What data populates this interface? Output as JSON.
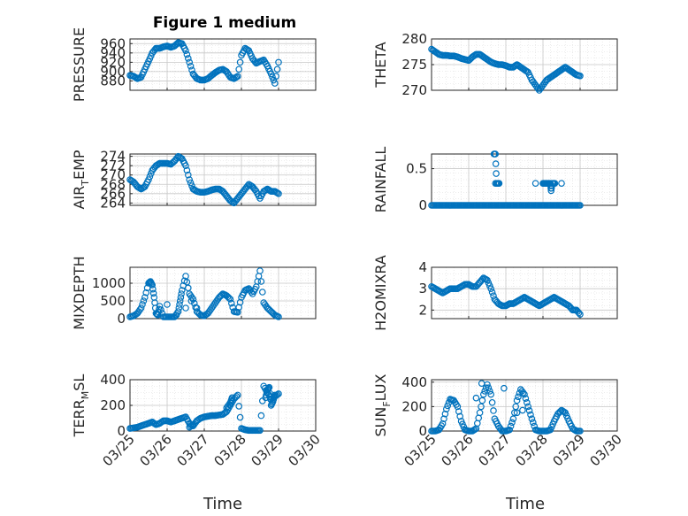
{
  "figure": {
    "title": "Figure 1 medium",
    "xlabel": "Time"
  },
  "style": {
    "marker_color": "#0072bd",
    "axis_color": "#262626",
    "grid_color": "#c8c8c8"
  },
  "chart_data": [
    {
      "type": "scatter",
      "ylabel": "PRESSURE",
      "ylim": [
        860,
        970
      ],
      "yticks": [
        880,
        900,
        920,
        940,
        960
      ],
      "xlim": [
        0,
        5
      ],
      "grid": true,
      "x": [
        0,
        0.1,
        0.2,
        0.3,
        0.4,
        0.5,
        0.6,
        0.7,
        0.8,
        0.9,
        1.0,
        1.1,
        1.2,
        1.3,
        1.4,
        1.5,
        1.6,
        1.7,
        1.8,
        1.9,
        2.0,
        2.1,
        2.2,
        2.3,
        2.4,
        2.5,
        2.6,
        2.7,
        2.8,
        2.9,
        3.0,
        3.1,
        3.2,
        3.3,
        3.4,
        3.5,
        3.6,
        3.7,
        3.8,
        3.9,
        4.0
      ],
      "y": [
        892,
        890,
        885,
        888,
        905,
        922,
        940,
        950,
        950,
        953,
        955,
        952,
        955,
        962,
        960,
        945,
        920,
        895,
        885,
        882,
        882,
        885,
        892,
        898,
        903,
        905,
        900,
        888,
        885,
        890,
        935,
        950,
        945,
        928,
        918,
        922,
        925,
        912,
        895,
        875,
        920
      ]
    },
    {
      "type": "scatter",
      "ylabel": "THETA",
      "ylim": [
        270,
        280
      ],
      "yticks": [
        270,
        275,
        280
      ],
      "xlim": [
        0,
        5
      ],
      "grid": true,
      "x": [
        0,
        0.1,
        0.2,
        0.3,
        0.4,
        0.5,
        0.6,
        0.7,
        0.8,
        0.9,
        1.0,
        1.1,
        1.2,
        1.3,
        1.4,
        1.5,
        1.6,
        1.7,
        1.8,
        1.9,
        2.0,
        2.1,
        2.2,
        2.3,
        2.4,
        2.5,
        2.6,
        2.7,
        2.8,
        2.9,
        3.0,
        3.1,
        3.2,
        3.3,
        3.4,
        3.5,
        3.6,
        3.7,
        3.8,
        3.9,
        4.0
      ],
      "y": [
        278,
        277.5,
        277,
        276.8,
        276.8,
        276.7,
        276.7,
        276.5,
        276.2,
        276,
        275.8,
        276.5,
        277,
        277,
        276.5,
        276,
        275.5,
        275.2,
        275,
        275,
        274.8,
        274.5,
        274.5,
        275,
        274.5,
        274,
        273.5,
        272,
        271,
        270,
        271,
        272,
        272.5,
        273,
        273.5,
        274,
        274.5,
        274,
        273.5,
        273,
        272.8
      ]
    },
    {
      "type": "scatter",
      "ylabel": "AIR_TEMP",
      "ylim": [
        263.5,
        274.5
      ],
      "yticks": [
        264,
        266,
        268,
        270,
        272,
        274
      ],
      "xlim": [
        0,
        5
      ],
      "grid": true,
      "x": [
        0,
        0.1,
        0.2,
        0.3,
        0.4,
        0.5,
        0.6,
        0.7,
        0.8,
        0.9,
        1.0,
        1.1,
        1.2,
        1.3,
        1.4,
        1.5,
        1.6,
        1.7,
        1.8,
        1.9,
        2.0,
        2.1,
        2.2,
        2.3,
        2.4,
        2.5,
        2.6,
        2.7,
        2.8,
        2.9,
        3.0,
        3.1,
        3.2,
        3.3,
        3.4,
        3.5,
        3.6,
        3.7,
        3.8,
        3.9,
        4.0
      ],
      "y": [
        269,
        268.5,
        267.5,
        267,
        267.5,
        269,
        271,
        272,
        272.5,
        272.5,
        272.5,
        272.3,
        273,
        274,
        273.5,
        272,
        269,
        267,
        266.5,
        266.3,
        266.3,
        266.5,
        266.8,
        267,
        267,
        266.5,
        265.5,
        264.5,
        264,
        265,
        266,
        267,
        268,
        267.5,
        266.5,
        265,
        266.5,
        267,
        266.5,
        266.5,
        266
      ]
    },
    {
      "type": "scatter",
      "ylabel": "RAINFALL",
      "ylim": [
        0,
        0.7
      ],
      "yticks": [
        0,
        0.5
      ],
      "xlim": [
        0,
        5
      ],
      "grid": true,
      "x": [
        0,
        0.1,
        0.2,
        0.3,
        0.4,
        0.5,
        0.6,
        0.7,
        0.8,
        0.9,
        1.0,
        1.1,
        1.2,
        1.3,
        1.4,
        1.5,
        1.6,
        1.7,
        1.8,
        1.9,
        2.0,
        2.1,
        2.2,
        2.3,
        2.4,
        2.5,
        2.6,
        2.7,
        2.8,
        2.9,
        3.0,
        3.1,
        3.2,
        3.3,
        3.4,
        3.5,
        3.6,
        3.7,
        3.8,
        3.9,
        4.0,
        1.68,
        1.72,
        1.75,
        1.82,
        1.72,
        2.8,
        3.0,
        3.05,
        3.1,
        3.15,
        3.2,
        3.22,
        3.25,
        3.32,
        3.5
      ],
      "y": [
        0,
        0,
        0,
        0,
        0,
        0,
        0,
        0,
        0,
        0,
        0,
        0,
        0,
        0,
        0,
        0,
        0,
        0,
        0,
        0,
        0,
        0,
        0,
        0,
        0,
        0,
        0,
        0,
        0,
        0,
        0,
        0,
        0,
        0,
        0,
        0,
        0,
        0,
        0,
        0,
        0,
        0.7,
        0.7,
        0.3,
        0.3,
        0.3,
        0.3,
        0.3,
        0.3,
        0.3,
        0.3,
        0.3,
        0.2,
        0.3,
        0.3,
        0.3
      ]
    },
    {
      "type": "scatter",
      "ylabel": "MIXDEPTH",
      "ylim": [
        0,
        1450
      ],
      "yticks": [
        0,
        500,
        1000
      ],
      "xlim": [
        0,
        5
      ],
      "grid": true,
      "x": [
        0,
        0.1,
        0.2,
        0.3,
        0.4,
        0.5,
        0.55,
        0.6,
        0.65,
        0.7,
        0.75,
        0.8,
        0.9,
        1.0,
        1.1,
        1.2,
        1.3,
        1.35,
        1.4,
        1.5,
        1.6,
        1.7,
        1.8,
        1.9,
        2.0,
        2.1,
        2.2,
        2.3,
        2.4,
        2.5,
        2.6,
        2.7,
        2.8,
        2.9,
        3.0,
        3.1,
        3.2,
        3.3,
        3.4,
        3.5,
        3.6,
        3.7,
        3.8,
        3.9,
        4.0,
        1.0,
        1.25,
        1.5,
        1.65,
        1.8
      ],
      "y": [
        50,
        80,
        150,
        300,
        600,
        1000,
        1050,
        950,
        600,
        150,
        100,
        350,
        50,
        50,
        50,
        50,
        200,
        500,
        800,
        1200,
        700,
        550,
        200,
        100,
        80,
        150,
        300,
        450,
        600,
        700,
        650,
        550,
        200,
        180,
        600,
        800,
        850,
        700,
        900,
        1350,
        450,
        300,
        200,
        100,
        50,
        400,
        100,
        300,
        500,
        300
      ]
    },
    {
      "type": "scatter",
      "ylabel": "H2OMIXRA",
      "ylim": [
        1.6,
        4
      ],
      "yticks": [
        2,
        3,
        4
      ],
      "xlim": [
        0,
        5
      ],
      "grid": true,
      "x": [
        0,
        0.1,
        0.2,
        0.3,
        0.4,
        0.5,
        0.6,
        0.7,
        0.8,
        0.9,
        1.0,
        1.1,
        1.2,
        1.3,
        1.4,
        1.5,
        1.6,
        1.7,
        1.8,
        1.9,
        2.0,
        2.1,
        2.2,
        2.3,
        2.4,
        2.5,
        2.6,
        2.7,
        2.8,
        2.9,
        3.0,
        3.1,
        3.2,
        3.3,
        3.4,
        3.5,
        3.6,
        3.7,
        3.8,
        3.9,
        4.0
      ],
      "y": [
        3.1,
        3.0,
        2.9,
        2.8,
        2.9,
        3.0,
        3.0,
        3.0,
        3.1,
        3.2,
        3.2,
        3.1,
        3.1,
        3.3,
        3.5,
        3.4,
        3.0,
        2.5,
        2.3,
        2.2,
        2.2,
        2.3,
        2.3,
        2.4,
        2.5,
        2.6,
        2.5,
        2.4,
        2.3,
        2.2,
        2.3,
        2.4,
        2.5,
        2.6,
        2.5,
        2.4,
        2.3,
        2.2,
        2.0,
        2.0,
        1.8
      ]
    },
    {
      "type": "scatter",
      "ylabel": "TERR_MSL",
      "ylim": [
        0,
        400
      ],
      "yticks": [
        0,
        200,
        400
      ],
      "xlim": [
        0,
        5
      ],
      "grid": true,
      "x": [
        0,
        0.1,
        0.2,
        0.3,
        0.4,
        0.5,
        0.6,
        0.7,
        0.8,
        0.9,
        1.0,
        1.1,
        1.2,
        1.3,
        1.4,
        1.5,
        1.6,
        1.7,
        1.8,
        1.9,
        2.0,
        2.1,
        2.2,
        2.3,
        2.4,
        2.5,
        2.6,
        2.7,
        2.8,
        2.9,
        3.0,
        3.1,
        3.2,
        3.3,
        3.4,
        3.5,
        3.6,
        3.7,
        3.8,
        3.9,
        4.0,
        1.6,
        1.7,
        2.6,
        2.7,
        2.75,
        3.65,
        3.7,
        3.75,
        3.8,
        3.85,
        3.9
      ],
      "y": [
        20,
        25,
        30,
        40,
        50,
        60,
        70,
        50,
        60,
        80,
        80,
        70,
        80,
        90,
        100,
        110,
        60,
        40,
        80,
        100,
        110,
        115,
        120,
        120,
        125,
        130,
        150,
        200,
        250,
        280,
        20,
        10,
        5,
        5,
        5,
        5,
        350,
        300,
        250,
        270,
        290,
        30,
        50,
        180,
        220,
        260,
        260,
        320,
        340,
        200,
        230,
        280
      ]
    },
    {
      "type": "scatter",
      "ylabel": "SUN_FLUX",
      "ylim": [
        0,
        420
      ],
      "yticks": [
        0,
        200,
        400
      ],
      "xlim": [
        0,
        5
      ],
      "grid": true,
      "x": [
        0,
        0.1,
        0.2,
        0.3,
        0.4,
        0.5,
        0.6,
        0.7,
        0.8,
        0.9,
        1.0,
        1.1,
        1.2,
        1.3,
        1.4,
        1.5,
        1.6,
        1.7,
        1.8,
        1.9,
        2.0,
        2.1,
        2.2,
        2.3,
        2.4,
        2.5,
        2.6,
        2.7,
        2.8,
        2.9,
        3.0,
        3.1,
        3.2,
        3.3,
        3.4,
        3.5,
        3.6,
        3.7,
        3.8,
        3.9,
        4.0,
        1.2,
        1.35,
        1.95,
        2.3,
        2.45
      ],
      "y": [
        0,
        0,
        10,
        60,
        180,
        260,
        250,
        200,
        80,
        10,
        0,
        0,
        20,
        150,
        300,
        380,
        300,
        100,
        40,
        0,
        0,
        10,
        100,
        250,
        340,
        300,
        200,
        100,
        10,
        0,
        0,
        0,
        10,
        80,
        140,
        170,
        150,
        80,
        20,
        0,
        0,
        270,
        390,
        350,
        150,
        170
      ]
    }
  ],
  "x_axis": {
    "tick_labels": [
      "03/25",
      "03/26",
      "03/27",
      "03/28",
      "03/29",
      "03/30"
    ]
  }
}
